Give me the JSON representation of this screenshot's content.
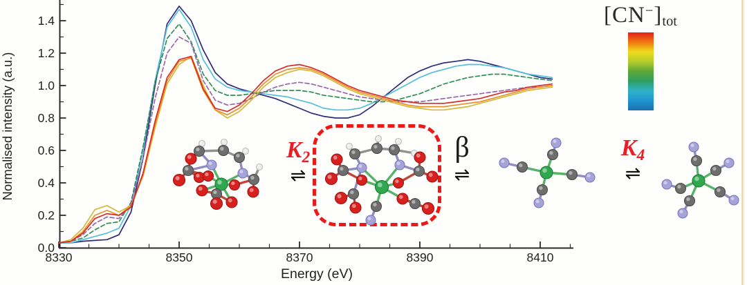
{
  "chart_data": {
    "type": "line",
    "title": "",
    "xlabel": "Energy (eV)",
    "ylabel": "Normalised intensity (a.u.)",
    "xlim": [
      8330,
      8415.5
    ],
    "ylim": [
      0,
      1.53
    ],
    "grid": false,
    "x_major_ticks": [
      8330,
      8350,
      8370,
      8390,
      8410
    ],
    "x_minor_step": 5,
    "y_major_ticks": [
      0,
      0.2,
      0.4,
      0.6,
      0.8,
      1,
      1.2,
      1.4
    ],
    "y_minor_step": 0.1,
    "x": [
      8330,
      8332,
      8334,
      8336,
      8338,
      8340,
      8342,
      8344,
      8346,
      8348,
      8350,
      8352,
      8354,
      8356,
      8358,
      8360,
      8362,
      8364,
      8366,
      8368,
      8370,
      8372,
      8374,
      8376,
      8378,
      8380,
      8382,
      8384,
      8386,
      8388,
      8390,
      8392,
      8394,
      8396,
      8398,
      8400,
      8402,
      8404,
      8406,
      8408,
      8410,
      8412
    ],
    "series": [
      {
        "name": "dark-blue",
        "color": "#2c2c78",
        "dash": "",
        "values": [
          0.03,
          0.03,
          0.04,
          0.045,
          0.05,
          0.08,
          0.22,
          0.55,
          1.0,
          1.38,
          1.49,
          1.4,
          1.22,
          1.08,
          1.01,
          0.98,
          0.96,
          0.94,
          0.92,
          0.89,
          0.86,
          0.83,
          0.81,
          0.8,
          0.8,
          0.82,
          0.87,
          0.93,
          0.99,
          1.05,
          1.09,
          1.12,
          1.14,
          1.15,
          1.16,
          1.15,
          1.13,
          1.11,
          1.09,
          1.07,
          1.05,
          1.04
        ]
      },
      {
        "name": "cyan",
        "color": "#54bfdc",
        "dash": "",
        "values": [
          0.03,
          0.03,
          0.05,
          0.07,
          0.09,
          0.12,
          0.26,
          0.6,
          1.03,
          1.36,
          1.47,
          1.36,
          1.16,
          1.04,
          0.99,
          0.97,
          0.96,
          0.95,
          0.94,
          0.93,
          0.91,
          0.89,
          0.86,
          0.85,
          0.85,
          0.86,
          0.89,
          0.93,
          0.97,
          1.01,
          1.05,
          1.08,
          1.1,
          1.12,
          1.13,
          1.13,
          1.12,
          1.11,
          1.09,
          1.07,
          1.06,
          1.05
        ]
      },
      {
        "name": "green",
        "color": "#2e8f55",
        "dash": "6 3.5",
        "values": [
          0.03,
          0.04,
          0.06,
          0.11,
          0.15,
          0.16,
          0.28,
          0.62,
          1.02,
          1.29,
          1.38,
          1.27,
          1.07,
          0.97,
          0.94,
          0.94,
          0.95,
          0.96,
          0.97,
          0.97,
          0.97,
          0.96,
          0.94,
          0.93,
          0.92,
          0.91,
          0.9,
          0.9,
          0.91,
          0.93,
          0.95,
          0.98,
          1.01,
          1.03,
          1.05,
          1.06,
          1.07,
          1.07,
          1.06,
          1.05,
          1.04,
          1.03
        ]
      },
      {
        "name": "purple",
        "color": "#9966aa",
        "dash": "6 3.5",
        "values": [
          0.03,
          0.04,
          0.08,
          0.15,
          0.19,
          0.18,
          0.27,
          0.55,
          0.92,
          1.2,
          1.3,
          1.26,
          1.03,
          0.91,
          0.88,
          0.89,
          0.92,
          0.96,
          0.99,
          1.01,
          1.02,
          1.01,
          0.99,
          0.97,
          0.95,
          0.93,
          0.92,
          0.91,
          0.9,
          0.9,
          0.9,
          0.91,
          0.92,
          0.93,
          0.94,
          0.95,
          0.96,
          0.97,
          0.98,
          0.99,
          0.99,
          1.0
        ]
      },
      {
        "name": "yellow",
        "color": "#d4b83c",
        "dash": "",
        "values": [
          0.03,
          0.05,
          0.12,
          0.235,
          0.26,
          0.22,
          0.26,
          0.44,
          0.74,
          1.01,
          1.13,
          1.18,
          1.0,
          0.85,
          0.8,
          0.84,
          0.91,
          0.99,
          1.05,
          1.08,
          1.1,
          1.09,
          1.06,
          1.02,
          0.98,
          0.95,
          0.93,
          0.91,
          0.89,
          0.87,
          0.86,
          0.85,
          0.85,
          0.86,
          0.87,
          0.89,
          0.91,
          0.93,
          0.95,
          0.97,
          0.98,
          0.99
        ]
      },
      {
        "name": "orange",
        "color": "#e98f23",
        "dash": "",
        "values": [
          0.03,
          0.04,
          0.1,
          0.2,
          0.23,
          0.2,
          0.26,
          0.45,
          0.76,
          1.03,
          1.15,
          1.17,
          0.97,
          0.85,
          0.82,
          0.86,
          0.93,
          1.01,
          1.07,
          1.1,
          1.11,
          1.1,
          1.07,
          1.03,
          0.99,
          0.96,
          0.94,
          0.92,
          0.9,
          0.88,
          0.87,
          0.87,
          0.87,
          0.88,
          0.89,
          0.9,
          0.92,
          0.94,
          0.96,
          0.98,
          0.99,
          1.0
        ]
      },
      {
        "name": "red",
        "color": "#d92b25",
        "dash": "",
        "values": [
          0.03,
          0.04,
          0.09,
          0.18,
          0.21,
          0.2,
          0.25,
          0.46,
          0.78,
          1.05,
          1.16,
          1.18,
          0.98,
          0.86,
          0.84,
          0.88,
          0.95,
          1.03,
          1.09,
          1.12,
          1.13,
          1.11,
          1.08,
          1.04,
          1.0,
          0.97,
          0.95,
          0.93,
          0.91,
          0.9,
          0.89,
          0.89,
          0.89,
          0.9,
          0.91,
          0.92,
          0.94,
          0.96,
          0.97,
          0.99,
          1.0,
          1.01
        ]
      }
    ]
  },
  "axis_style": {
    "tick_color": "#2a2a2a",
    "label_color": "#222222"
  },
  "colorbar": {
    "label": "[CN−]tot",
    "label_parts": {
      "prefix": "[CN",
      "sup": "−",
      "bracket": "]",
      "sub": "tot"
    },
    "gradient": [
      "#e32219",
      "#ef7712",
      "#eddc1c",
      "#b3cc2d",
      "#5ea73a",
      "#2f9e62",
      "#2fb2c6",
      "#1f95d0",
      "#1b6fb0"
    ]
  },
  "reaction_scheme": {
    "arrow": "⇌",
    "steps": [
      {
        "constant": "K",
        "sub": "2",
        "color": "#ec1c24"
      },
      {
        "constant": "β",
        "sub": "",
        "color": "#1a1a1a"
      },
      {
        "constant": "K",
        "sub": "4",
        "color": "#ec1c24"
      }
    ],
    "highlight_box_color": "#ec1919",
    "molecules": [
      {
        "id": "ni-edta",
        "description": "Ni(II)-EDTA complex"
      },
      {
        "id": "ni-edta-cn",
        "description": "Ni(II)-EDTA-CN ternary complex (highlighted)"
      },
      {
        "id": "ni-cn4",
        "description": "square-planar Ni(CN)4 complex"
      },
      {
        "id": "ni-cn5",
        "description": "five-coordinate Ni(CN)5 complex"
      }
    ],
    "atom_colors": {
      "Ni": "#2fa84f",
      "O": "#d8201f",
      "C": "#6e6e6e",
      "H": "#ececec",
      "N": "#a6a3d9"
    }
  }
}
